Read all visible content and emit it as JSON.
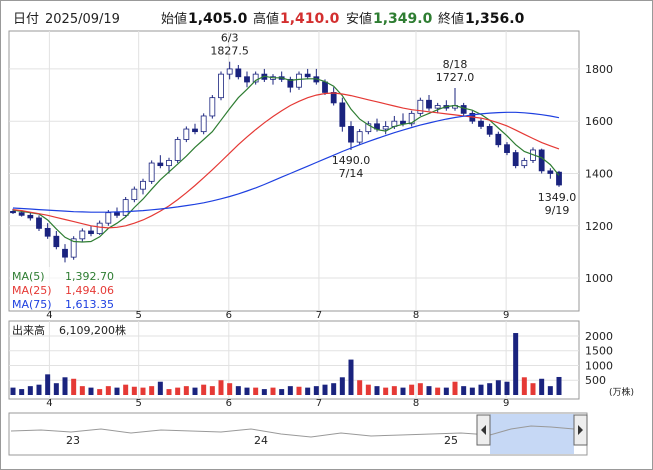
{
  "header": {
    "date_label": "日付",
    "date": "2025/09/19",
    "fields": [
      {
        "label": "始値",
        "value": "1,405.0",
        "color": "#111111"
      },
      {
        "label": "高値",
        "value": "1,410.0",
        "color": "#d32f2f"
      },
      {
        "label": "安値",
        "value": "1,349.0",
        "color": "#2e7d32"
      },
      {
        "label": "終値",
        "value": "1,356.0",
        "color": "#111111"
      }
    ]
  },
  "chart_data": [
    {
      "type": "candlestick",
      "up_color": "#ffffff",
      "down_color": "#1a237e",
      "edge_color": "#1a237e",
      "xlim": [
        0,
        63
      ],
      "xticks": [
        {
          "value": 4.2,
          "label": "4"
        },
        {
          "value": 14.5,
          "label": "5"
        },
        {
          "value": 24.9,
          "label": "6"
        },
        {
          "value": 35.3,
          "label": "7"
        },
        {
          "value": 46.5,
          "label": "8"
        },
        {
          "value": 56.9,
          "label": "9"
        }
      ],
      "ylim": [
        874,
        1945
      ],
      "yticks": [
        1000,
        1200,
        1400,
        1600,
        1800
      ],
      "grid": true,
      "candles": [
        [
          1255,
          1265,
          1245,
          1250
        ],
        [
          1250,
          1260,
          1235,
          1240
        ],
        [
          1240,
          1250,
          1220,
          1230
        ],
        [
          1230,
          1240,
          1180,
          1190
        ],
        [
          1190,
          1210,
          1150,
          1160
        ],
        [
          1160,
          1180,
          1110,
          1120
        ],
        [
          1110,
          1130,
          1060,
          1080
        ],
        [
          1080,
          1160,
          1070,
          1150
        ],
        [
          1150,
          1190,
          1140,
          1180
        ],
        [
          1180,
          1200,
          1160,
          1170
        ],
        [
          1170,
          1220,
          1165,
          1210
        ],
        [
          1210,
          1260,
          1200,
          1250
        ],
        [
          1250,
          1270,
          1230,
          1240
        ],
        [
          1240,
          1310,
          1235,
          1300
        ],
        [
          1300,
          1350,
          1290,
          1340
        ],
        [
          1340,
          1380,
          1320,
          1370
        ],
        [
          1370,
          1450,
          1360,
          1440
        ],
        [
          1440,
          1470,
          1420,
          1430
        ],
        [
          1430,
          1460,
          1400,
          1450
        ],
        [
          1450,
          1540,
          1440,
          1530
        ],
        [
          1530,
          1580,
          1520,
          1570
        ],
        [
          1570,
          1590,
          1550,
          1560
        ],
        [
          1560,
          1630,
          1550,
          1620
        ],
        [
          1620,
          1700,
          1610,
          1690
        ],
        [
          1690,
          1790,
          1680,
          1780
        ],
        [
          1780,
          1827.5,
          1760,
          1800
        ],
        [
          1800,
          1815,
          1760,
          1770
        ],
        [
          1770,
          1790,
          1730,
          1750
        ],
        [
          1750,
          1790,
          1740,
          1780
        ],
        [
          1780,
          1800,
          1750,
          1760
        ],
        [
          1760,
          1780,
          1740,
          1770
        ],
        [
          1770,
          1790,
          1750,
          1760
        ],
        [
          1760,
          1770,
          1710,
          1730
        ],
        [
          1730,
          1790,
          1720,
          1780
        ],
        [
          1780,
          1800,
          1760,
          1770
        ],
        [
          1770,
          1800,
          1740,
          1750
        ],
        [
          1750,
          1760,
          1700,
          1710
        ],
        [
          1710,
          1730,
          1660,
          1670
        ],
        [
          1670,
          1690,
          1560,
          1580
        ],
        [
          1580,
          1600,
          1490,
          1520
        ],
        [
          1520,
          1570,
          1510,
          1560
        ],
        [
          1560,
          1600,
          1550,
          1590
        ],
        [
          1590,
          1610,
          1560,
          1570
        ],
        [
          1570,
          1600,
          1550,
          1580
        ],
        [
          1580,
          1620,
          1570,
          1600
        ],
        [
          1600,
          1630,
          1580,
          1590
        ],
        [
          1590,
          1640,
          1580,
          1630
        ],
        [
          1630,
          1690,
          1620,
          1680
        ],
        [
          1680,
          1700,
          1640,
          1650
        ],
        [
          1650,
          1670,
          1630,
          1660
        ],
        [
          1660,
          1680,
          1640,
          1650
        ],
        [
          1650,
          1727,
          1640,
          1660
        ],
        [
          1660,
          1670,
          1620,
          1630
        ],
        [
          1630,
          1640,
          1590,
          1600
        ],
        [
          1600,
          1610,
          1570,
          1580
        ],
        [
          1580,
          1590,
          1540,
          1550
        ],
        [
          1550,
          1560,
          1500,
          1510
        ],
        [
          1510,
          1520,
          1470,
          1480
        ],
        [
          1480,
          1490,
          1420,
          1430
        ],
        [
          1430,
          1460,
          1420,
          1450
        ],
        [
          1450,
          1500,
          1440,
          1490
        ],
        [
          1490,
          1495,
          1400,
          1410
        ],
        [
          1410,
          1420,
          1380,
          1400
        ],
        [
          1405,
          1410,
          1349,
          1356
        ]
      ],
      "series": [
        {
          "name": "MA(5)",
          "color": "#2e7d32",
          "last_label": "1,392.70",
          "values": [
            1260,
            1255,
            1250,
            1245,
            1222,
            1188,
            1156,
            1140,
            1138,
            1140,
            1158,
            1190,
            1210,
            1234,
            1270,
            1302,
            1340,
            1376,
            1406,
            1436,
            1466,
            1500,
            1530,
            1560,
            1604,
            1648,
            1690,
            1722,
            1756,
            1772,
            1766,
            1766,
            1756,
            1760,
            1762,
            1762,
            1752,
            1734,
            1698,
            1646,
            1608,
            1586,
            1568,
            1562,
            1580,
            1588,
            1594,
            1616,
            1630,
            1644,
            1656,
            1660,
            1650,
            1642,
            1626,
            1604,
            1574,
            1544,
            1510,
            1484,
            1472,
            1460,
            1434,
            1392.7
          ]
        },
        {
          "name": "MA(25)",
          "color": "#e53935",
          "last_label": "1,494.06",
          "values": [
            1262,
            1258,
            1252,
            1246,
            1240,
            1232,
            1224,
            1216,
            1208,
            1200,
            1195,
            1192,
            1194,
            1200,
            1210,
            1222,
            1238,
            1256,
            1276,
            1300,
            1326,
            1354,
            1384,
            1414,
            1446,
            1478,
            1510,
            1540,
            1568,
            1594,
            1618,
            1640,
            1660,
            1676,
            1690,
            1700,
            1706,
            1708,
            1704,
            1698,
            1690,
            1682,
            1674,
            1666,
            1658,
            1650,
            1644,
            1640,
            1636,
            1632,
            1628,
            1624,
            1620,
            1616,
            1612,
            1604,
            1594,
            1582,
            1566,
            1550,
            1534,
            1518,
            1506,
            1494.06
          ]
        },
        {
          "name": "MA(75)",
          "color": "#1e40e0",
          "last_label": "1,613.35",
          "values": [
            1268,
            1266,
            1264,
            1262,
            1260,
            1258,
            1256,
            1254,
            1253,
            1252,
            1252,
            1252,
            1253,
            1254,
            1256,
            1258,
            1261,
            1264,
            1268,
            1272,
            1277,
            1282,
            1288,
            1295,
            1303,
            1312,
            1322,
            1333,
            1345,
            1358,
            1372,
            1386,
            1400,
            1414,
            1428,
            1442,
            1456,
            1470,
            1484,
            1497,
            1510,
            1522,
            1534,
            1545,
            1556,
            1566,
            1576,
            1585,
            1593,
            1601,
            1608,
            1614,
            1619,
            1624,
            1628,
            1631,
            1633,
            1634,
            1634,
            1632,
            1629,
            1625,
            1620,
            1613.35
          ]
        }
      ],
      "annotations": [
        {
          "date": "6/3",
          "value": 1827.5,
          "kind": "high"
        },
        {
          "date": "8/18",
          "value": {
            "value": 1727,
            "label": "1727.0"
          },
          "kind": "high"
        },
        {
          "date": "7/14",
          "value": {
            "value": 1490,
            "label": "1490.0"
          },
          "kind": "low"
        },
        {
          "date": "9/19",
          "value": {
            "value": 1349,
            "label": "1349.0"
          },
          "kind": "low"
        }
      ]
    },
    {
      "type": "bar",
      "title": "出来高",
      "total_label": "6,109,200株",
      "unit_label": "(万株)",
      "up_color": "#e53935",
      "down_color": "#1a237e",
      "xlim": [
        0,
        63
      ],
      "xticks": [
        {
          "value": 4.2,
          "label": "4"
        },
        {
          "value": 14.5,
          "label": "5"
        },
        {
          "value": 24.9,
          "label": "6"
        },
        {
          "value": 35.3,
          "label": "7"
        },
        {
          "value": 46.5,
          "label": "8"
        },
        {
          "value": 56.9,
          "label": "9"
        }
      ],
      "ylim": [
        0,
        2440
      ],
      "yticks": [
        500,
        1000,
        1500,
        2000
      ],
      "values": [
        250,
        200,
        300,
        350,
        700,
        400,
        600,
        550,
        300,
        250,
        200,
        300,
        250,
        350,
        280,
        250,
        300,
        450,
        200,
        250,
        300,
        250,
        350,
        300,
        500,
        400,
        300,
        250,
        250,
        200,
        250,
        200,
        300,
        280,
        250,
        300,
        350,
        400,
        600,
        1200,
        500,
        350,
        300,
        250,
        300,
        250,
        350,
        400,
        300,
        250,
        250,
        450,
        300,
        250,
        350,
        400,
        500,
        450,
        2100,
        600,
        400,
        550,
        300,
        610.92
      ]
    }
  ],
  "navigator": {
    "labels": [
      "23",
      "24",
      "25"
    ]
  }
}
